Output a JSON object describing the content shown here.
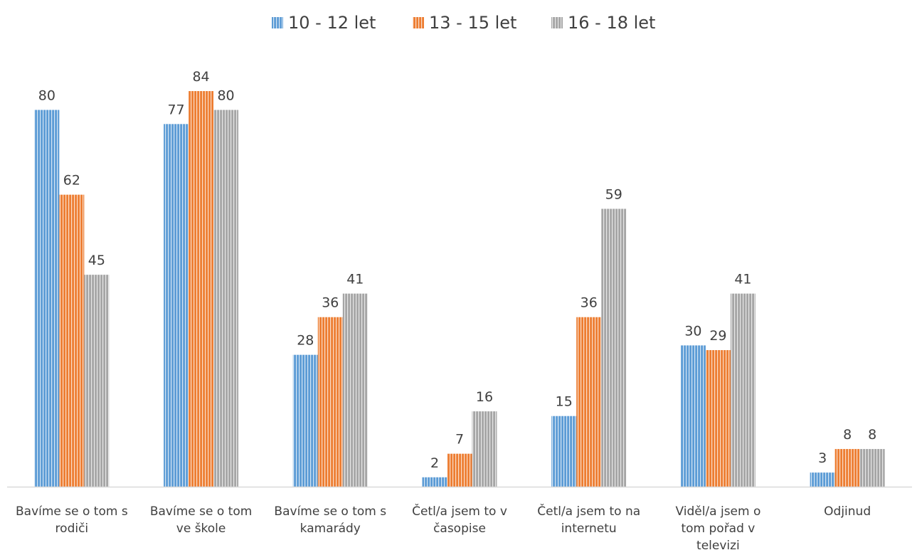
{
  "chart_data": {
    "type": "bar",
    "categories": [
      [
        "Bavíme se o tom s",
        "rodiči"
      ],
      [
        "Bavíme se o tom",
        "ve škole"
      ],
      [
        "Bavíme se o tom s",
        "kamarády"
      ],
      [
        "Četl/a jsem to v",
        "časopise"
      ],
      [
        "Četl/a jsem to na",
        "internetu"
      ],
      [
        "Viděl/a jsem o",
        "tom pořad v",
        "televizi"
      ],
      [
        "Odjinud"
      ]
    ],
    "series": [
      {
        "name": "10 - 12 let",
        "values": [
          80,
          77,
          28,
          2,
          15,
          30,
          3
        ],
        "color": "#5B9BD5",
        "pattern": "vertical-stripes"
      },
      {
        "name": "13 - 15 let",
        "values": [
          62,
          84,
          36,
          7,
          36,
          29,
          8
        ],
        "color": "#ED7D31",
        "pattern": "vertical-stripes"
      },
      {
        "name": "16 - 18 let",
        "values": [
          45,
          80,
          41,
          16,
          59,
          41,
          8
        ],
        "color": "#A5A5A5",
        "pattern": "vertical-stripes"
      }
    ],
    "ylim": [
      0,
      84
    ],
    "grid": false,
    "legend_position": "top-center",
    "data_labels": true
  }
}
